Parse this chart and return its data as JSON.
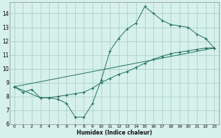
{
  "xlabel": "Humidex (Indice chaleur)",
  "xlim": [
    -0.5,
    23.5
  ],
  "ylim": [
    6,
    14.8
  ],
  "xticks": [
    0,
    1,
    2,
    3,
    4,
    5,
    6,
    7,
    8,
    9,
    10,
    11,
    12,
    13,
    14,
    15,
    16,
    17,
    18,
    19,
    20,
    21,
    22,
    23
  ],
  "yticks": [
    6,
    7,
    8,
    9,
    10,
    11,
    12,
    13,
    14
  ],
  "bg_color": "#d6f0eb",
  "grid_color": "#aacfc8",
  "line_color": "#1e6e5e",
  "line1_x": [
    0,
    1,
    2,
    3,
    4,
    5,
    6,
    7,
    8,
    9,
    10,
    11,
    12,
    13,
    14,
    15,
    16,
    17,
    18,
    19,
    20,
    21,
    22,
    23
  ],
  "line1_y": [
    8.7,
    8.3,
    8.5,
    7.9,
    7.9,
    7.8,
    7.5,
    6.5,
    6.5,
    7.5,
    9.2,
    11.3,
    12.2,
    12.9,
    13.3,
    14.5,
    14.0,
    13.5,
    13.2,
    13.1,
    13.0,
    12.5,
    12.2,
    11.5
  ],
  "line2_x": [
    0,
    3,
    4,
    5,
    6,
    7,
    8,
    9,
    10,
    11,
    12,
    13,
    14,
    15,
    16,
    17,
    18,
    19,
    20,
    21,
    22,
    23
  ],
  "line2_y": [
    8.7,
    7.9,
    7.9,
    8.0,
    8.1,
    8.2,
    8.3,
    8.6,
    9.0,
    9.3,
    9.6,
    9.8,
    10.1,
    10.4,
    10.7,
    10.9,
    11.1,
    11.2,
    11.3,
    11.4,
    11.5,
    11.5
  ],
  "line3_x": [
    0,
    23
  ],
  "line3_y": [
    8.7,
    11.5
  ]
}
